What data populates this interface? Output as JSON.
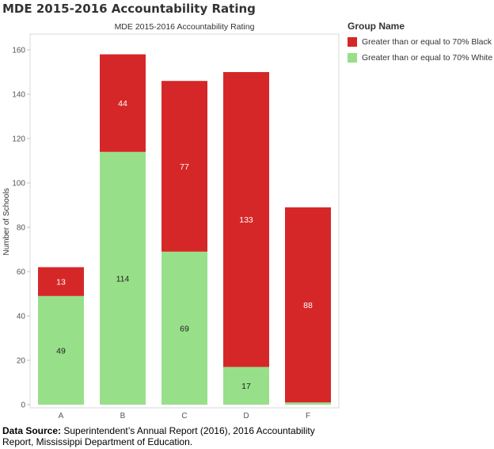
{
  "page": {
    "title": "MDE 2015-2016 Accountability Rating"
  },
  "legend": {
    "title": "Group Name",
    "items": [
      {
        "label": "Greater than or equal to 70% Black",
        "color": "#d62728"
      },
      {
        "label": "Greater than or equal to 70% White",
        "color": "#98df8a"
      }
    ]
  },
  "source": {
    "lead": "Data Source:",
    "text": " Superintendent’s Annual Report (2016), 2016 Accountability Report, Mississippi Department of Education."
  },
  "chart_data": {
    "type": "bar",
    "stacked": true,
    "title": "MDE 2015-2016 Accountability Rating",
    "xlabel": "",
    "ylabel": "Number of Schools",
    "ylim": [
      0,
      165
    ],
    "yticks": [
      0,
      20,
      40,
      60,
      80,
      100,
      120,
      140,
      160
    ],
    "grid": false,
    "legend_position": "right",
    "categories": [
      "A",
      "B",
      "C",
      "D",
      "F"
    ],
    "series": [
      {
        "name": "Greater than or equal to 70% White",
        "color": "#98df8a",
        "values": [
          49,
          114,
          69,
          17,
          1
        ],
        "labels": [
          "49",
          "114",
          "69",
          "17",
          ""
        ]
      },
      {
        "name": "Greater than or equal to 70% Black",
        "color": "#d62728",
        "values": [
          13,
          44,
          77,
          133,
          88
        ],
        "labels": [
          "13",
          "44",
          "77",
          "133",
          "88"
        ]
      }
    ]
  }
}
